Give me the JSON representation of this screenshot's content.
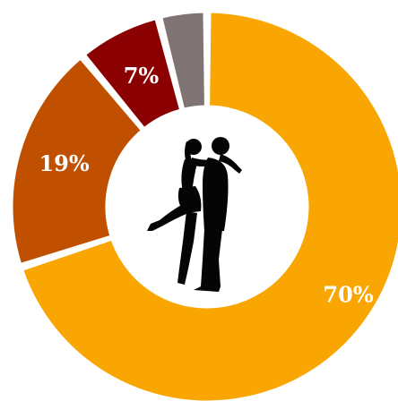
{
  "chart_data": {
    "type": "pie",
    "title": "",
    "slices": [
      {
        "label": "70%",
        "value": 70,
        "color": "#f9a602"
      },
      {
        "label": "19%",
        "value": 19,
        "color": "#c05000"
      },
      {
        "label": "7%",
        "value": 7,
        "color": "#8b0000"
      },
      {
        "label": "",
        "value": 4,
        "color": "#7f7473"
      }
    ],
    "center_icon": "embracing-couple-silhouette-icon"
  }
}
